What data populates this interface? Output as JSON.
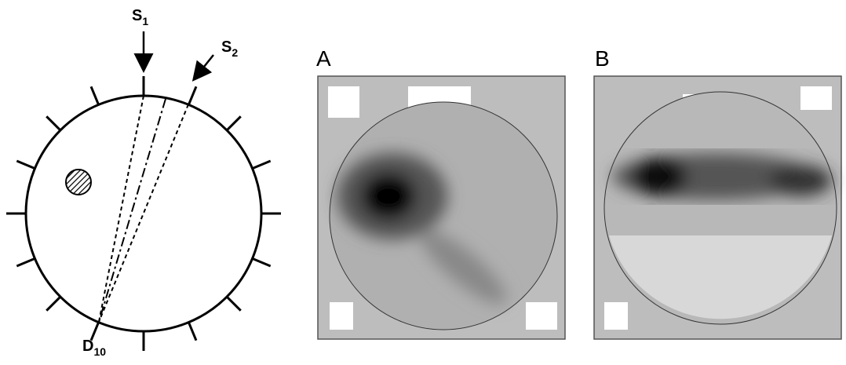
{
  "source_1": {
    "letter": "S",
    "index": "1"
  },
  "source_2": {
    "letter": "S",
    "index": "2"
  },
  "detector": {
    "letter": "D",
    "index": "10"
  },
  "panels": [
    "A",
    "B"
  ]
}
